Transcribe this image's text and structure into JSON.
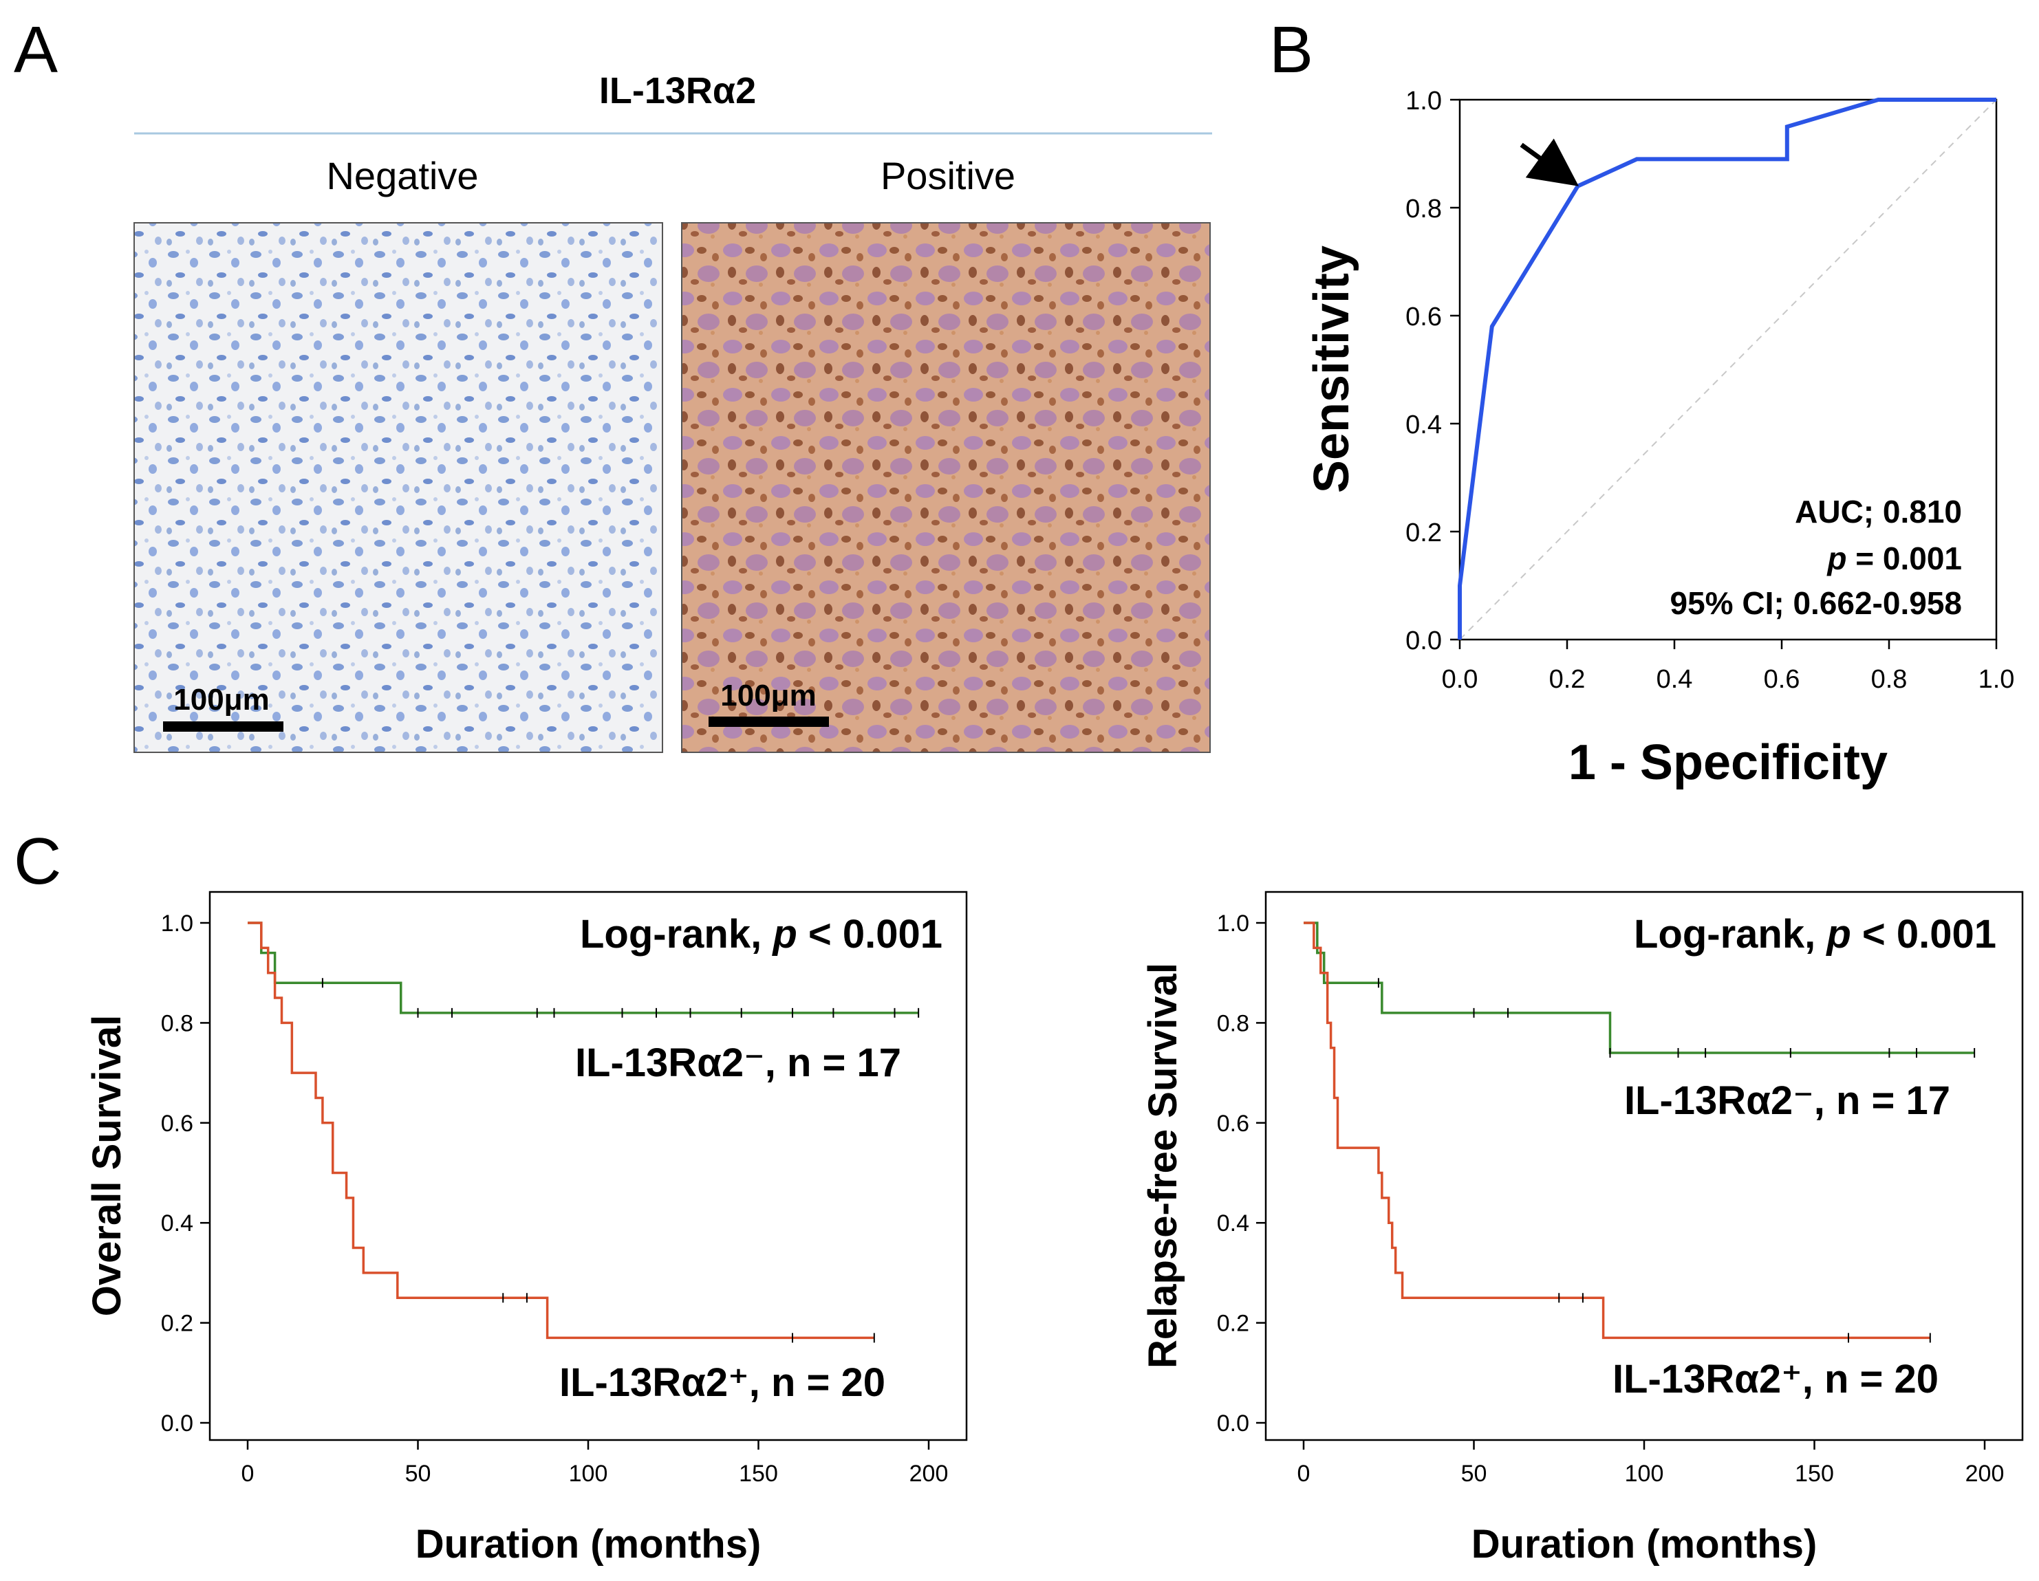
{
  "panel_a": {
    "letter": "A",
    "title": "IL-13Rα2",
    "images": [
      {
        "label": "Negative",
        "scale_bar": "100μm",
        "stain": "negative"
      },
      {
        "label": "Positive",
        "scale_bar": "100μm",
        "stain": "positive"
      }
    ]
  },
  "panel_b": {
    "letter": "B"
  },
  "panel_c": {
    "letter": "C"
  },
  "colors": {
    "roc_line": "#2b55e6",
    "reference_line": "#c8c8c8",
    "negative_group": "#3a8a2e",
    "positive_group": "#d9502c",
    "divider": "#a8c8e0"
  },
  "chart_data": [
    {
      "id": "roc",
      "type": "line",
      "title": "",
      "xlabel": "1 - Specificity",
      "ylabel": "Sensitivity",
      "xlim": [
        0,
        1
      ],
      "ylim": [
        0,
        1
      ],
      "xticks": [
        "0.0",
        "0.2",
        "0.4",
        "0.6",
        "0.8",
        "1.0"
      ],
      "yticks": [
        "0.0",
        "0.2",
        "0.4",
        "0.6",
        "0.8",
        "1.0"
      ],
      "series": [
        {
          "name": "ROC",
          "x": [
            0,
            0,
            0.06,
            0.22,
            0.33,
            0.61,
            0.61,
            0.78,
            1.0
          ],
          "y": [
            0,
            0.1,
            0.58,
            0.84,
            0.89,
            0.89,
            0.95,
            1.0,
            1.0
          ]
        },
        {
          "name": "Reference",
          "x": [
            0,
            1
          ],
          "y": [
            0,
            1
          ]
        }
      ],
      "arrow_at": {
        "x": 0.22,
        "y": 0.84
      },
      "annotations": [
        "AUC; 0.810",
        "p = 0.001",
        "95% CI; 0.662-0.958"
      ],
      "annotation_p_letter": "p",
      "annotation_p_rest": " = 0.001"
    },
    {
      "id": "os",
      "type": "line",
      "title": "",
      "xlabel": "Duration (months)",
      "ylabel": "Overall Survival",
      "xlim": [
        0,
        200
      ],
      "ylim": [
        0,
        1
      ],
      "xticks": [
        "0",
        "50",
        "100",
        "150",
        "200"
      ],
      "yticks": [
        "0.0",
        "0.2",
        "0.4",
        "0.6",
        "0.8",
        "1.0"
      ],
      "logrank_pre": "Log-rank, ",
      "logrank_p": "p",
      "logrank_post": " < 0.001",
      "series": [
        {
          "name": "IL-13Rα2⁻, n = 17",
          "x": [
            0,
            4,
            8,
            45,
            197
          ],
          "y": [
            1.0,
            0.94,
            0.88,
            0.82,
            0.82
          ],
          "censored": [
            22,
            50,
            60,
            85,
            90,
            110,
            120,
            130,
            145,
            160,
            172,
            190,
            197
          ]
        },
        {
          "name": "IL-13Rα2⁺, n = 20",
          "x": [
            0,
            4,
            6,
            8,
            10,
            13,
            20,
            22,
            25,
            29,
            31,
            34,
            44,
            88,
            184
          ],
          "y": [
            1.0,
            0.95,
            0.9,
            0.85,
            0.8,
            0.7,
            0.65,
            0.6,
            0.5,
            0.45,
            0.35,
            0.3,
            0.25,
            0.17,
            0.17
          ],
          "censored": [
            75,
            82,
            160,
            184
          ]
        }
      ]
    },
    {
      "id": "rfs",
      "type": "line",
      "title": "",
      "xlabel": "Duration (months)",
      "ylabel": "Relapse-free Survival",
      "xlim": [
        0,
        200
      ],
      "ylim": [
        0,
        1
      ],
      "xticks": [
        "0",
        "50",
        "100",
        "150",
        "200"
      ],
      "yticks": [
        "0.0",
        "0.2",
        "0.4",
        "0.6",
        "0.8",
        "1.0"
      ],
      "logrank_pre": "Log-rank, ",
      "logrank_p": "p",
      "logrank_post": " < 0.001",
      "series": [
        {
          "name": "IL-13Rα2⁻, n = 17",
          "x": [
            0,
            4,
            6,
            23,
            90,
            197
          ],
          "y": [
            1.0,
            0.94,
            0.88,
            0.82,
            0.74,
            0.74
          ],
          "censored": [
            22,
            50,
            60,
            90,
            110,
            118,
            143,
            172,
            180,
            197
          ]
        },
        {
          "name": "IL-13Rα2⁺, n = 20",
          "x": [
            0,
            3,
            5,
            7,
            8,
            9,
            10,
            22,
            23,
            25,
            26,
            27,
            29,
            31,
            88,
            184
          ],
          "y": [
            1.0,
            0.95,
            0.9,
            0.8,
            0.75,
            0.65,
            0.55,
            0.5,
            0.45,
            0.4,
            0.35,
            0.3,
            0.25,
            0.25,
            0.17,
            0.17
          ],
          "censored": [
            75,
            82,
            160,
            184
          ]
        }
      ]
    }
  ]
}
